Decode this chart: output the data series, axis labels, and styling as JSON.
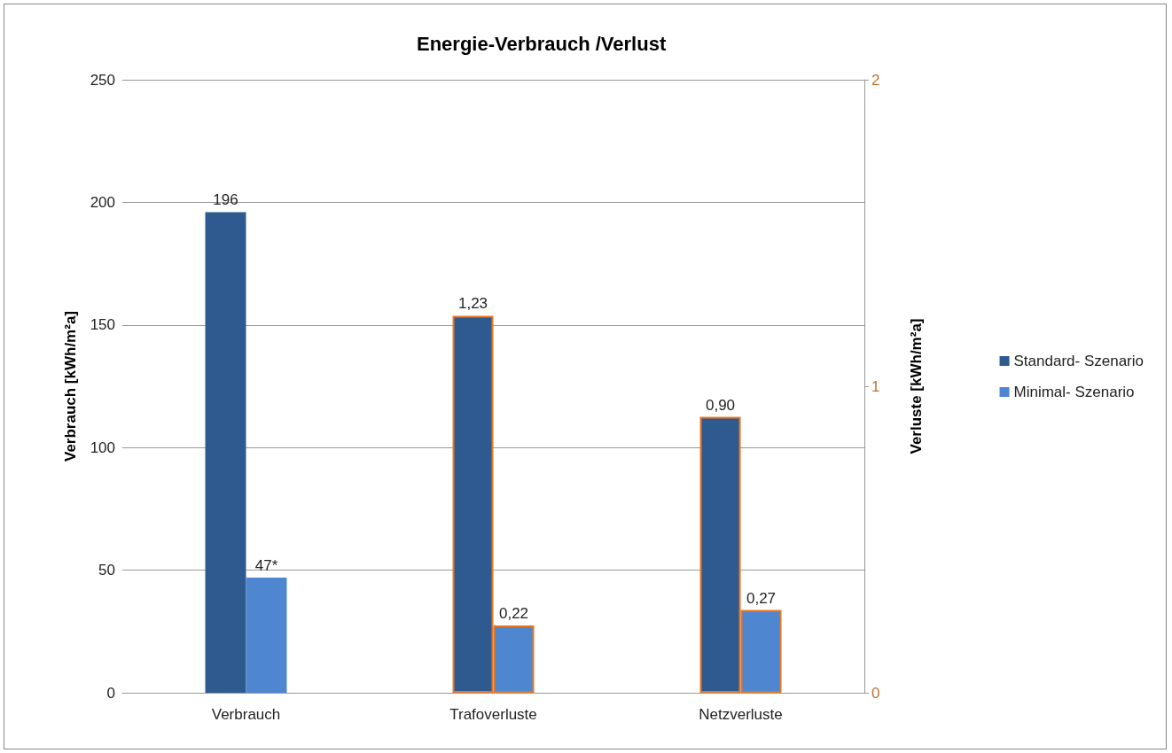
{
  "chart_data": {
    "type": "bar",
    "title": "Energie-Verbrauch /Verlust",
    "ylabel": "Verbrauch [kWh/m²a]",
    "y2label": "Verluste [kWh/m²a]",
    "categories": [
      "Verbrauch",
      "Trafoverluste",
      "Netzverluste"
    ],
    "series": [
      {
        "name": "Standard- Szenario",
        "color": "#2f5a8f",
        "values": [
          196,
          null,
          null
        ],
        "value_labels": [
          "196",
          null,
          null
        ]
      },
      {
        "name": "Minimal- Szenario",
        "color": "#4f86d0",
        "values": [
          47,
          null,
          null
        ],
        "value_labels": [
          "47*",
          null,
          null
        ]
      },
      {
        "color": "#2f5a8f",
        "axis": "y2",
        "values": [
          null,
          1.23,
          0.9
        ],
        "value_labels": [
          null,
          "1,23",
          "0,90"
        ]
      },
      {
        "color": "#4f86d0",
        "axis": "y2",
        "values": [
          null,
          0.22,
          0.27
        ],
        "value_labels": [
          null,
          "0,22",
          "0,27"
        ]
      }
    ],
    "ylim": [
      0,
      250
    ],
    "yticks": [
      0,
      50,
      100,
      150,
      200,
      250
    ],
    "y2lim": [
      0,
      2
    ],
    "y2ticks": [
      0,
      1,
      2
    ],
    "grid": "y",
    "legend": "right"
  }
}
